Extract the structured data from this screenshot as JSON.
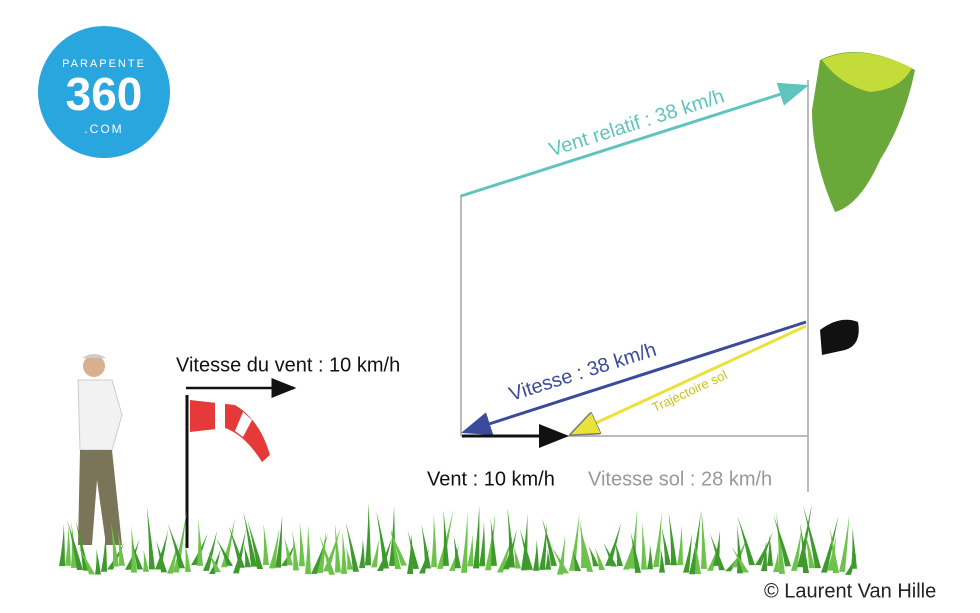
{
  "logo": {
    "top": "PARAPENTE",
    "number": "360",
    "bottom": ".COM"
  },
  "labels": {
    "relative_wind": "Vent relatif : 38 km/h",
    "wind_speed": "Vitesse du vent : 10 km/h",
    "airspeed": "Vitesse  : 38 km/h",
    "ground_track": "Trajectoire sol",
    "wind": "Vent : 10 km/h",
    "ground_speed": "Vitesse sol : 28 km/h"
  },
  "credit": "© Laurent Van Hille"
}
